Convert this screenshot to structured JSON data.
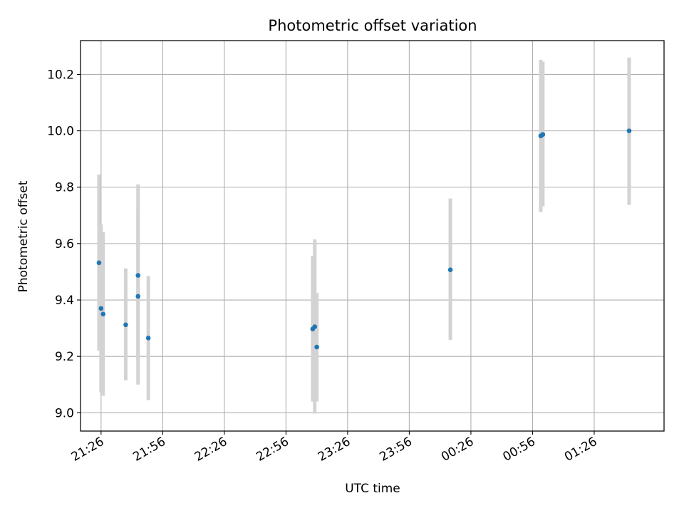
{
  "chart_data": {
    "type": "scatter",
    "title": "Photometric offset variation",
    "xlabel": "UTC time",
    "ylabel": "Photometric offset",
    "x_tick_labels": [
      "21:26",
      "21:56",
      "22:26",
      "22:56",
      "23:26",
      "23:56",
      "00:26",
      "00:56",
      "01:26"
    ],
    "y_tick_labels": [
      "9.0",
      "9.2",
      "9.4",
      "9.6",
      "9.8",
      "10.0",
      "10.2"
    ],
    "y_ticks": [
      9.0,
      9.2,
      9.4,
      9.6,
      9.8,
      10.0,
      10.2
    ],
    "ylim": [
      8.935,
      10.32
    ],
    "x_tick_hours": [
      21.4333,
      21.9333,
      22.4333,
      22.9333,
      23.4333,
      23.9333,
      24.4333,
      24.9333,
      25.4333
    ],
    "xlim_hours": [
      21.2667,
      26.0
    ],
    "grid": true,
    "colors": {
      "marker": "#1f77b4",
      "errorbar": "#d3d3d3",
      "grid": "#b0b0b0"
    },
    "points": [
      {
        "time": "21:25",
        "offset": 9.532,
        "err_low": 9.22,
        "err_high": 9.845
      },
      {
        "time": "21:26",
        "offset": 9.37,
        "err_low": 9.072,
        "err_high": 9.668
      },
      {
        "time": "21:27",
        "offset": 9.35,
        "err_low": 9.06,
        "err_high": 9.64
      },
      {
        "time": "21:38",
        "offset": 9.312,
        "err_low": 9.115,
        "err_high": 9.512
      },
      {
        "time": "21:44",
        "offset": 9.487,
        "err_low": 9.18,
        "err_high": 9.81
      },
      {
        "time": "21:44",
        "offset": 9.413,
        "err_low": 9.1,
        "err_high": 9.725
      },
      {
        "time": "21:49",
        "offset": 9.265,
        "err_low": 9.045,
        "err_high": 9.485
      },
      {
        "time": "23:09",
        "offset": 9.297,
        "err_low": 9.04,
        "err_high": 9.556
      },
      {
        "time": "23:10",
        "offset": 9.305,
        "err_low": 8.997,
        "err_high": 9.615
      },
      {
        "time": "23:11",
        "offset": 9.233,
        "err_low": 9.04,
        "err_high": 9.425
      },
      {
        "time": "00:16",
        "offset": 9.507,
        "err_low": 9.258,
        "err_high": 9.76
      },
      {
        "time": "01:00",
        "offset": 9.982,
        "err_low": 9.712,
        "err_high": 10.252
      },
      {
        "time": "01:01",
        "offset": 9.987,
        "err_low": 9.732,
        "err_high": 10.245
      },
      {
        "time": "01:43",
        "offset": 10.0,
        "err_low": 9.737,
        "err_high": 10.26
      }
    ]
  }
}
